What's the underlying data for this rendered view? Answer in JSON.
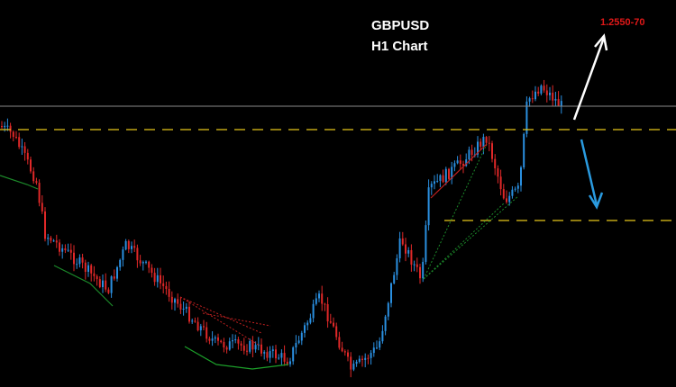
{
  "header": {
    "symbol": "GBPUSD",
    "timeframe": "H1 Chart"
  },
  "annotations": {
    "target": "1.2550-70"
  }
}
